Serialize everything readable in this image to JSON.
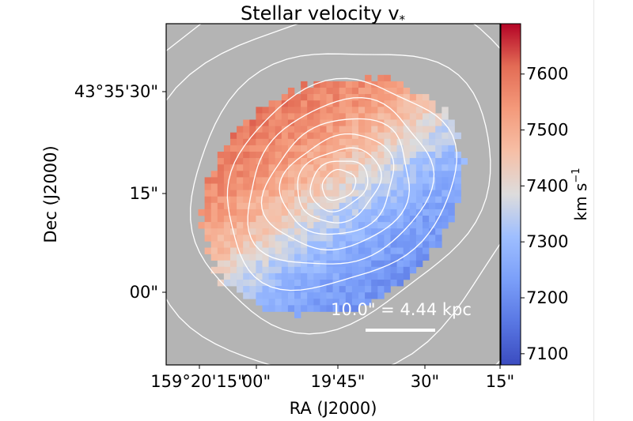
{
  "chart_data": {
    "type": "heatmap",
    "title": "Stellar velocity v",
    "title_sub": "*",
    "xlabel": "RA (J2000)",
    "ylabel": "Dec (J2000)",
    "x_tick_labels": [
      "159°20'15\"",
      "00\"",
      "19'45\"",
      "30\"",
      "15\""
    ],
    "y_tick_labels": [
      "43°35'30\"",
      "15\"",
      "00\""
    ],
    "colorbar": {
      "label": "km s",
      "label_sup": "−1",
      "range": [
        7080,
        7690
      ],
      "ticks": [
        7100,
        7200,
        7300,
        7400,
        7500,
        7600
      ],
      "tick_labels": [
        "7100",
        "7200",
        "7300",
        "7400",
        "7500",
        "7600"
      ],
      "colormap": "coolwarm"
    },
    "scale_bar": {
      "label": "10.0\" = 4.44 kpc"
    },
    "velocity_field": {
      "systemic_kms": 7400,
      "amplitude_kms": 210,
      "gradient": "redshifted toward upper-left (north-east), blueshifted toward lower-right (south-west)"
    },
    "contours": "white isophotes of stellar continuum, centred near RA 19'50\", Dec 43°35'16\"",
    "background_color": "#b4b4b4",
    "contour_color": "#ffffff"
  }
}
